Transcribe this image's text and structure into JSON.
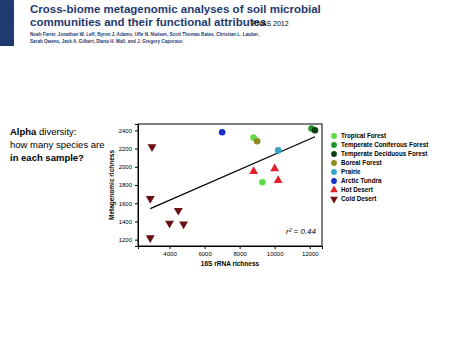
{
  "header": {
    "title": [
      "Cross-biome metagenomic analyses of soil microbial",
      "communities and their functional attributes"
    ],
    "journal": "PNAS 2012",
    "authors": [
      "Noah Fierer, Jonathan W. Leff, Byron J. Adams, Uffe N. Nielsen, Scott Thomas Bates, Christian L. Lauber,",
      "Sarah Owens, Jack A. Gilbert, Diana H. Wall, and J. Gregory Caporaso"
    ]
  },
  "side_text": [
    "Alpha diversity:",
    "how many species are",
    "in each sample?"
  ],
  "chart_data": {
    "type": "scatter",
    "x_label": "16S rRNA richness",
    "y_label": "Metagenomic richness",
    "xlim": [
      2200,
      12700
    ],
    "ylim": [
      1130,
      2470
    ],
    "xticks": [
      4000,
      6000,
      8000,
      10000,
      12000
    ],
    "yticks": [
      1200,
      1400,
      1600,
      1800,
      2000,
      2200,
      2400
    ],
    "legend": "right",
    "series": [
      {
        "name": "Tropical Forest",
        "color": "#5fdc45",
        "marker": "circle",
        "x": [
          8800,
          9300
        ],
        "values": [
          2320,
          1830
        ]
      },
      {
        "name": "Temperate Coniferous Forest",
        "color": "#24952a",
        "marker": "circle",
        "x": [
          12100
        ],
        "values": [
          2420
        ]
      },
      {
        "name": "Temperate Deciduous Forest",
        "color": "#0b3f12",
        "marker": "circle",
        "x": [
          12300
        ],
        "values": [
          2400
        ]
      },
      {
        "name": "Boreal Forest",
        "color": "#8c8c1f",
        "marker": "circle",
        "x": [
          9000
        ],
        "values": [
          2280
        ]
      },
      {
        "name": "Prairie",
        "color": "#36a6c8",
        "marker": "circle",
        "x": [
          10200
        ],
        "values": [
          2180
        ]
      },
      {
        "name": "Arctic Tundra",
        "color": "#1a2fc6",
        "marker": "circle",
        "x": [
          7000
        ],
        "values": [
          2380
        ]
      },
      {
        "name": "Hot Desert",
        "color": "#e6202b",
        "marker": "triangle",
        "x": [
          8800,
          10000,
          10200
        ],
        "values": [
          1950,
          1980,
          1850
        ]
      },
      {
        "name": "Cold Desert",
        "color": "#6a1012",
        "marker": "triangle-down",
        "x": [
          3000,
          2900,
          4500,
          4000,
          4800,
          2900
        ],
        "values": [
          2220,
          1650,
          1520,
          1380,
          1370,
          1220
        ]
      }
    ],
    "trend_line": {
      "x": [
        2900,
        12300
      ],
      "values": [
        1540,
        2330
      ]
    },
    "annotation": "r² = 0.44"
  }
}
